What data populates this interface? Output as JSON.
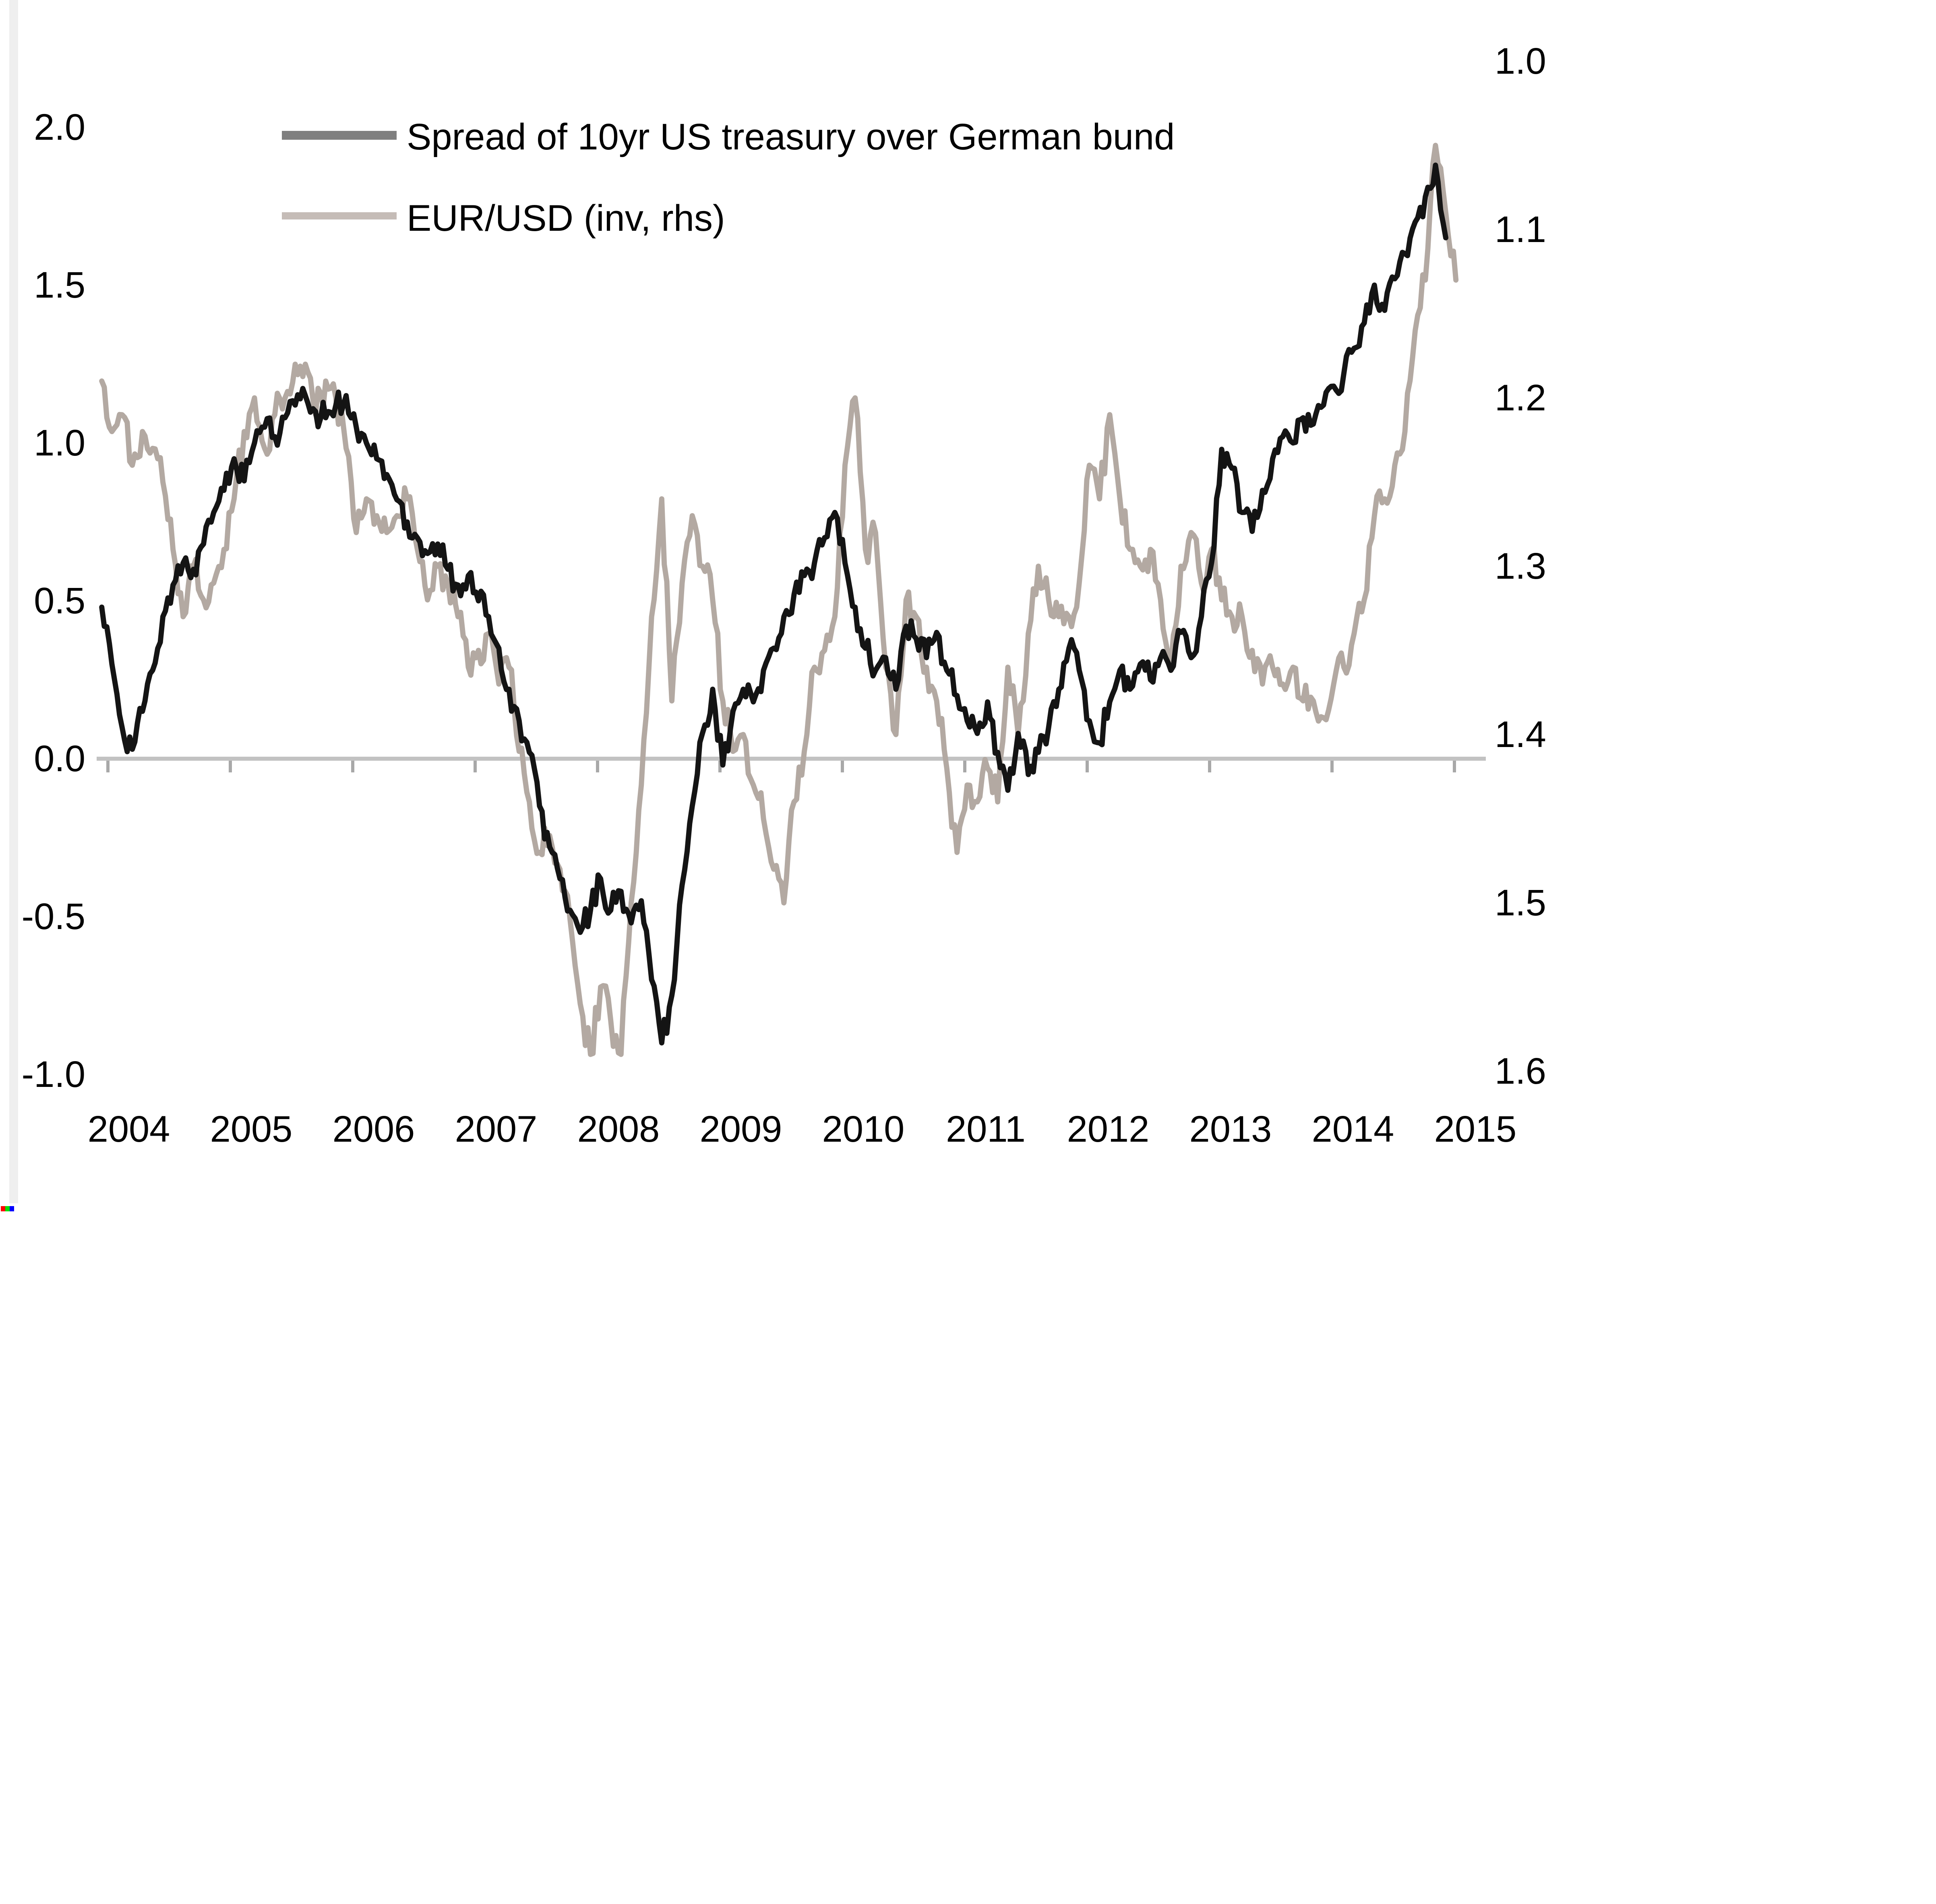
{
  "chart_data": {
    "type": "line",
    "title": "",
    "legend_position": "top-center",
    "grid": "off",
    "legend": [
      {
        "label": "Spread of 10yr US treasury over German bund",
        "line_color": "#141414",
        "swatch_color": "#7f7f7f"
      },
      {
        "label": "EUR/USD (inv, rhs)",
        "line_color": "#b3a9a2",
        "swatch_color": "#c5bcb7"
      }
    ],
    "x_labels": [
      "2004",
      "2005",
      "2006",
      "2007",
      "2008",
      "2009",
      "2010",
      "2011",
      "2012",
      "2013",
      "2014",
      "2015"
    ],
    "left_axis": {
      "tick_labels": [
        "2.0",
        "1.5",
        "1.0",
        "0.5",
        "0.0",
        "-0.5",
        "-1.0"
      ],
      "tick_values": [
        2.0,
        1.5,
        1.0,
        0.5,
        0.0,
        -0.5,
        -1.0
      ],
      "range": [
        -1.0,
        2.0
      ]
    },
    "right_axis": {
      "tick_labels": [
        "1.0",
        "1.1",
        "1.2",
        "1.3",
        "1.4",
        "1.5",
        "1.6"
      ],
      "tick_values": [
        1.0,
        1.1,
        1.2,
        1.3,
        1.4,
        1.5,
        1.6
      ],
      "range": [
        1.0,
        1.6
      ],
      "inverted": true
    },
    "baseline_value": 0.0,
    "baseline_color": "#c2c2c2",
    "tick_color": "#a8a8a8",
    "style": {
      "weekly_noise_spread": 0.045,
      "weekly_noise_eurusd": 0.011
    },
    "series": [
      {
        "name": "spread_10yr_ust_over_bund",
        "axis": "left",
        "color": "#141414",
        "points": [
          [
            2004.292,
            0.48
          ],
          [
            2004.375,
            0.3
          ],
          [
            2004.458,
            0.1
          ],
          [
            2004.542,
            0.03
          ],
          [
            2004.625,
            0.15
          ],
          [
            2004.708,
            0.28
          ],
          [
            2004.792,
            0.45
          ],
          [
            2004.875,
            0.55
          ],
          [
            2004.958,
            0.62
          ],
          [
            2005.042,
            0.6
          ],
          [
            2005.125,
            0.68
          ],
          [
            2005.208,
            0.78
          ],
          [
            2005.292,
            0.85
          ],
          [
            2005.375,
            0.95
          ],
          [
            2005.458,
            0.88
          ],
          [
            2005.542,
            1.0
          ],
          [
            2005.625,
            1.05
          ],
          [
            2005.708,
            1.02
          ],
          [
            2005.792,
            1.08
          ],
          [
            2005.875,
            1.12
          ],
          [
            2005.958,
            1.15
          ],
          [
            2006.042,
            1.1
          ],
          [
            2006.125,
            1.08
          ],
          [
            2006.208,
            1.12
          ],
          [
            2006.292,
            1.15
          ],
          [
            2006.375,
            1.05
          ],
          [
            2006.458,
            1.0
          ],
          [
            2006.542,
            0.95
          ],
          [
            2006.625,
            0.9
          ],
          [
            2006.708,
            0.82
          ],
          [
            2006.792,
            0.75
          ],
          [
            2006.875,
            0.7
          ],
          [
            2006.958,
            0.65
          ],
          [
            2007.042,
            0.68
          ],
          [
            2007.125,
            0.6
          ],
          [
            2007.208,
            0.55
          ],
          [
            2007.292,
            0.58
          ],
          [
            2007.375,
            0.5
          ],
          [
            2007.458,
            0.45
          ],
          [
            2007.542,
            0.35
          ],
          [
            2007.625,
            0.22
          ],
          [
            2007.708,
            0.12
          ],
          [
            2007.792,
            0.02
          ],
          [
            2007.875,
            -0.15
          ],
          [
            2007.958,
            -0.28
          ],
          [
            2008.042,
            -0.38
          ],
          [
            2008.125,
            -0.48
          ],
          [
            2008.208,
            -0.55
          ],
          [
            2008.292,
            -0.48
          ],
          [
            2008.375,
            -0.38
          ],
          [
            2008.458,
            -0.48
          ],
          [
            2008.542,
            -0.42
          ],
          [
            2008.625,
            -0.52
          ],
          [
            2008.708,
            -0.45
          ],
          [
            2008.792,
            -0.7
          ],
          [
            2008.875,
            -0.9
          ],
          [
            2008.958,
            -0.75
          ],
          [
            2009.042,
            -0.4
          ],
          [
            2009.125,
            -0.15
          ],
          [
            2009.208,
            0.08
          ],
          [
            2009.292,
            0.22
          ],
          [
            2009.375,
            -0.02
          ],
          [
            2009.458,
            0.15
          ],
          [
            2009.542,
            0.22
          ],
          [
            2009.625,
            0.18
          ],
          [
            2009.708,
            0.28
          ],
          [
            2009.792,
            0.35
          ],
          [
            2009.875,
            0.45
          ],
          [
            2009.958,
            0.52
          ],
          [
            2010.042,
            0.58
          ],
          [
            2010.125,
            0.62
          ],
          [
            2010.208,
            0.7
          ],
          [
            2010.292,
            0.78
          ],
          [
            2010.375,
            0.62
          ],
          [
            2010.458,
            0.48
          ],
          [
            2010.542,
            0.35
          ],
          [
            2010.625,
            0.28
          ],
          [
            2010.708,
            0.32
          ],
          [
            2010.792,
            0.22
          ],
          [
            2010.875,
            0.42
          ],
          [
            2010.958,
            0.38
          ],
          [
            2011.042,
            0.32
          ],
          [
            2011.125,
            0.4
          ],
          [
            2011.208,
            0.28
          ],
          [
            2011.292,
            0.2
          ],
          [
            2011.375,
            0.12
          ],
          [
            2011.458,
            0.08
          ],
          [
            2011.542,
            0.18
          ],
          [
            2011.625,
            0.02
          ],
          [
            2011.708,
            -0.1
          ],
          [
            2011.792,
            0.08
          ],
          [
            2011.875,
            -0.05
          ],
          [
            2011.958,
            0.02
          ],
          [
            2012.042,
            0.1
          ],
          [
            2012.125,
            0.22
          ],
          [
            2012.208,
            0.35
          ],
          [
            2012.292,
            0.28
          ],
          [
            2012.375,
            0.12
          ],
          [
            2012.458,
            0.05
          ],
          [
            2012.542,
            0.18
          ],
          [
            2012.625,
            0.28
          ],
          [
            2012.708,
            0.22
          ],
          [
            2012.792,
            0.3
          ],
          [
            2012.875,
            0.25
          ],
          [
            2012.958,
            0.32
          ],
          [
            2013.042,
            0.28
          ],
          [
            2013.125,
            0.4
          ],
          [
            2013.208,
            0.32
          ],
          [
            2013.292,
            0.45
          ],
          [
            2013.375,
            0.62
          ],
          [
            2013.458,
            0.98
          ],
          [
            2013.542,
            0.92
          ],
          [
            2013.625,
            0.78
          ],
          [
            2013.708,
            0.72
          ],
          [
            2013.792,
            0.85
          ],
          [
            2013.875,
            0.95
          ],
          [
            2013.958,
            1.02
          ],
          [
            2014.042,
            1.0
          ],
          [
            2014.125,
            1.08
          ],
          [
            2014.208,
            1.06
          ],
          [
            2014.292,
            1.12
          ],
          [
            2014.375,
            1.18
          ],
          [
            2014.458,
            1.22
          ],
          [
            2014.542,
            1.3
          ],
          [
            2014.625,
            1.38
          ],
          [
            2014.708,
            1.5
          ],
          [
            2014.792,
            1.42
          ],
          [
            2014.875,
            1.52
          ],
          [
            2014.958,
            1.6
          ],
          [
            2015.042,
            1.7
          ],
          [
            2015.125,
            1.78
          ],
          [
            2015.208,
            1.88
          ],
          [
            2015.292,
            1.65
          ]
        ]
      },
      {
        "name": "eur_usd_inverted_rhs",
        "axis": "right",
        "color": "#b3a9a2",
        "points": [
          [
            2004.292,
            1.19
          ],
          [
            2004.375,
            1.22
          ],
          [
            2004.458,
            1.21
          ],
          [
            2004.542,
            1.24
          ],
          [
            2004.625,
            1.22
          ],
          [
            2004.708,
            1.23
          ],
          [
            2004.792,
            1.25
          ],
          [
            2004.875,
            1.29
          ],
          [
            2004.958,
            1.33
          ],
          [
            2005.042,
            1.3
          ],
          [
            2005.125,
            1.32
          ],
          [
            2005.208,
            1.31
          ],
          [
            2005.292,
            1.29
          ],
          [
            2005.375,
            1.26
          ],
          [
            2005.458,
            1.22
          ],
          [
            2005.542,
            1.2
          ],
          [
            2005.625,
            1.23
          ],
          [
            2005.708,
            1.21
          ],
          [
            2005.792,
            1.2
          ],
          [
            2005.875,
            1.18
          ],
          [
            2005.958,
            1.18
          ],
          [
            2006.042,
            1.21
          ],
          [
            2006.125,
            1.19
          ],
          [
            2006.208,
            1.2
          ],
          [
            2006.292,
            1.23
          ],
          [
            2006.375,
            1.28
          ],
          [
            2006.458,
            1.26
          ],
          [
            2006.542,
            1.27
          ],
          [
            2006.625,
            1.28
          ],
          [
            2006.708,
            1.27
          ],
          [
            2006.792,
            1.26
          ],
          [
            2006.875,
            1.29
          ],
          [
            2006.958,
            1.32
          ],
          [
            2007.042,
            1.3
          ],
          [
            2007.125,
            1.31
          ],
          [
            2007.208,
            1.33
          ],
          [
            2007.292,
            1.36
          ],
          [
            2007.375,
            1.35
          ],
          [
            2007.458,
            1.34
          ],
          [
            2007.542,
            1.37
          ],
          [
            2007.625,
            1.36
          ],
          [
            2007.708,
            1.41
          ],
          [
            2007.792,
            1.44
          ],
          [
            2007.875,
            1.47
          ],
          [
            2007.958,
            1.46
          ],
          [
            2008.042,
            1.48
          ],
          [
            2008.125,
            1.51
          ],
          [
            2008.208,
            1.56
          ],
          [
            2008.292,
            1.59
          ],
          [
            2008.375,
            1.55
          ],
          [
            2008.458,
            1.57
          ],
          [
            2008.542,
            1.59
          ],
          [
            2008.625,
            1.5
          ],
          [
            2008.708,
            1.43
          ],
          [
            2008.792,
            1.33
          ],
          [
            2008.875,
            1.26
          ],
          [
            2008.958,
            1.38
          ],
          [
            2009.042,
            1.31
          ],
          [
            2009.125,
            1.27
          ],
          [
            2009.208,
            1.3
          ],
          [
            2009.292,
            1.32
          ],
          [
            2009.375,
            1.38
          ],
          [
            2009.458,
            1.41
          ],
          [
            2009.542,
            1.4
          ],
          [
            2009.625,
            1.43
          ],
          [
            2009.708,
            1.45
          ],
          [
            2009.792,
            1.48
          ],
          [
            2009.875,
            1.5
          ],
          [
            2009.958,
            1.44
          ],
          [
            2010.042,
            1.41
          ],
          [
            2010.125,
            1.36
          ],
          [
            2010.208,
            1.35
          ],
          [
            2010.292,
            1.33
          ],
          [
            2010.375,
            1.24
          ],
          [
            2010.458,
            1.2
          ],
          [
            2010.542,
            1.29
          ],
          [
            2010.625,
            1.28
          ],
          [
            2010.708,
            1.36
          ],
          [
            2010.792,
            1.4
          ],
          [
            2010.875,
            1.32
          ],
          [
            2010.958,
            1.33
          ],
          [
            2011.042,
            1.36
          ],
          [
            2011.125,
            1.38
          ],
          [
            2011.208,
            1.42
          ],
          [
            2011.292,
            1.47
          ],
          [
            2011.375,
            1.43
          ],
          [
            2011.458,
            1.44
          ],
          [
            2011.542,
            1.42
          ],
          [
            2011.625,
            1.44
          ],
          [
            2011.708,
            1.36
          ],
          [
            2011.792,
            1.4
          ],
          [
            2011.875,
            1.34
          ],
          [
            2011.958,
            1.3
          ],
          [
            2012.042,
            1.32
          ],
          [
            2012.125,
            1.33
          ],
          [
            2012.208,
            1.33
          ],
          [
            2012.292,
            1.31
          ],
          [
            2012.375,
            1.24
          ],
          [
            2012.458,
            1.26
          ],
          [
            2012.542,
            1.21
          ],
          [
            2012.625,
            1.26
          ],
          [
            2012.708,
            1.29
          ],
          [
            2012.792,
            1.3
          ],
          [
            2012.875,
            1.29
          ],
          [
            2012.958,
            1.32
          ],
          [
            2013.042,
            1.36
          ],
          [
            2013.125,
            1.3
          ],
          [
            2013.208,
            1.28
          ],
          [
            2013.292,
            1.31
          ],
          [
            2013.375,
            1.29
          ],
          [
            2013.458,
            1.32
          ],
          [
            2013.542,
            1.33
          ],
          [
            2013.625,
            1.33
          ],
          [
            2013.708,
            1.35
          ],
          [
            2013.792,
            1.37
          ],
          [
            2013.875,
            1.36
          ],
          [
            2013.958,
            1.37
          ],
          [
            2014.042,
            1.36
          ],
          [
            2014.125,
            1.38
          ],
          [
            2014.208,
            1.38
          ],
          [
            2014.292,
            1.39
          ],
          [
            2014.375,
            1.37
          ],
          [
            2014.458,
            1.36
          ],
          [
            2014.542,
            1.34
          ],
          [
            2014.625,
            1.32
          ],
          [
            2014.708,
            1.27
          ],
          [
            2014.792,
            1.26
          ],
          [
            2014.875,
            1.24
          ],
          [
            2014.958,
            1.22
          ],
          [
            2015.042,
            1.16
          ],
          [
            2015.125,
            1.13
          ],
          [
            2015.208,
            1.05
          ],
          [
            2015.292,
            1.09
          ],
          [
            2015.375,
            1.13
          ]
        ]
      }
    ]
  },
  "artifacts": {
    "left_strip_color": "#efefef",
    "rgb_squares": [
      "#ff0000",
      "#00e000",
      "#0000ff"
    ]
  }
}
